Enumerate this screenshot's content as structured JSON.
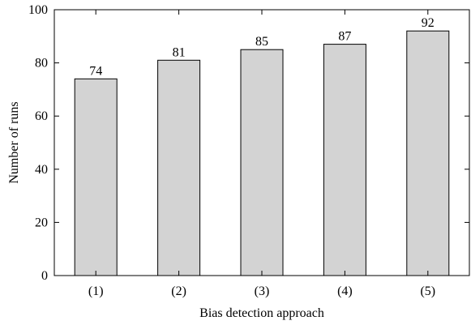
{
  "chart_data": {
    "type": "bar",
    "categories": [
      "(1)",
      "(2)",
      "(3)",
      "(4)",
      "(5)"
    ],
    "values": [
      74,
      81,
      85,
      87,
      92
    ],
    "data_labels": [
      "74",
      "81",
      "85",
      "87",
      "92"
    ],
    "title": "",
    "xlabel": "Bias detection approach",
    "ylabel": "Number of runs",
    "ylim": [
      0,
      100
    ],
    "yticks": [
      0,
      20,
      40,
      60,
      80,
      100
    ],
    "grid": false,
    "bar_color": "#d3d3d3",
    "edge_color": "#000000"
  }
}
